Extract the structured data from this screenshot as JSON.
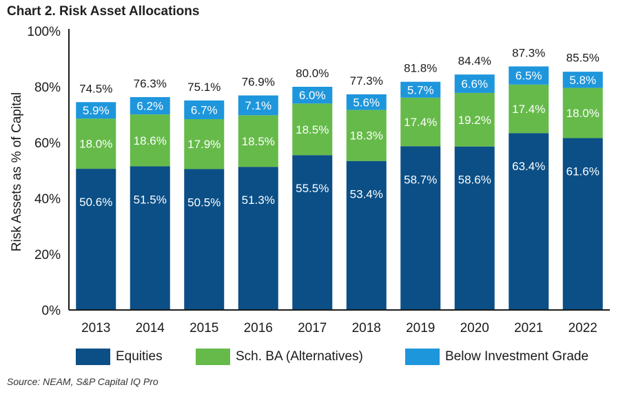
{
  "title": "Chart 2. Risk Asset Allocations",
  "source": "Source: NEAM, S&P Capital IQ Pro",
  "colors": {
    "equities": "#0b4f86",
    "alternatives": "#66ba4a",
    "below_ig": "#1e96dc",
    "axis": "#1a1a1a"
  },
  "chart_data": {
    "type": "bar",
    "stacked": true,
    "title": "Chart 2. Risk Asset Allocations",
    "xlabel": "",
    "ylabel": "Risk Assets as % of Capital",
    "ylim": [
      0,
      100
    ],
    "yticks": [
      "0%",
      "20%",
      "40%",
      "60%",
      "80%",
      "100%"
    ],
    "categories": [
      "2013",
      "2014",
      "2015",
      "2016",
      "2017",
      "2018",
      "2019",
      "2020",
      "2021",
      "2022"
    ],
    "series": [
      {
        "name": "Equities",
        "values": [
          50.6,
          51.5,
          50.5,
          51.3,
          55.5,
          53.4,
          58.7,
          58.6,
          63.4,
          61.6
        ],
        "labels": [
          "50.6%",
          "51.5%",
          "50.5%",
          "51.3%",
          "55.5%",
          "53.4%",
          "58.7%",
          "58.6%",
          "63.4%",
          "61.6%"
        ]
      },
      {
        "name": "Sch. BA (Alternatives)",
        "values": [
          18.0,
          18.6,
          17.9,
          18.5,
          18.5,
          18.3,
          17.4,
          19.2,
          17.4,
          18.0
        ],
        "labels": [
          "18.0%",
          "18.6%",
          "17.9%",
          "18.5%",
          "18.5%",
          "18.3%",
          "17.4%",
          "19.2%",
          "17.4%",
          "18.0%"
        ]
      },
      {
        "name": "Below Investment Grade",
        "values": [
          5.9,
          6.2,
          6.7,
          7.1,
          6.0,
          5.6,
          5.7,
          6.6,
          6.5,
          5.8
        ],
        "labels": [
          "5.9%",
          "6.2%",
          "6.7%",
          "7.1%",
          "6.0%",
          "5.6%",
          "5.7%",
          "6.6%",
          "6.5%",
          "5.8%"
        ]
      }
    ],
    "totals": [
      74.5,
      76.3,
      75.1,
      76.9,
      80.0,
      77.3,
      81.8,
      84.4,
      87.3,
      85.5
    ],
    "total_labels": [
      "74.5%",
      "76.3%",
      "75.1%",
      "76.9%",
      "80.0%",
      "77.3%",
      "81.8%",
      "84.4%",
      "87.3%",
      "85.5%"
    ],
    "legend": [
      "Equities",
      "Sch. BA (Alternatives)",
      "Below Investment Grade"
    ],
    "legend_position": "bottom",
    "grid": false
  }
}
